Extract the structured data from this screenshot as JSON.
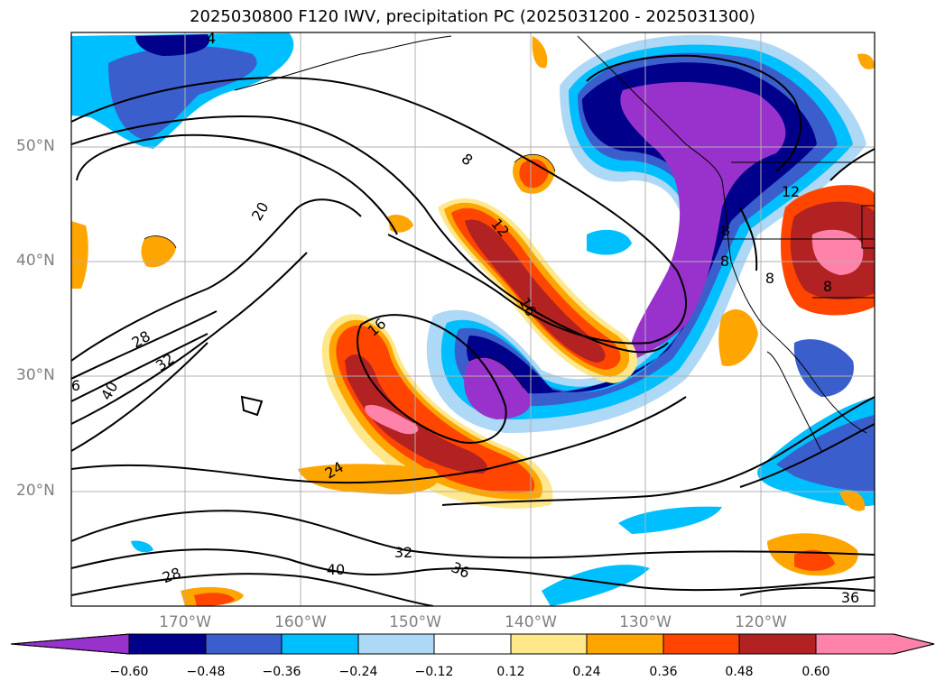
{
  "title": "2025030800 F120 IWV, precipitation PC (2025031200 - 2025031300)",
  "latitude_labels": [
    "50°N",
    "40°N",
    "30°N",
    "20°N"
  ],
  "longitude_labels": [
    "170°W",
    "160°W",
    "150°W",
    "140°W",
    "130°W",
    "120°W"
  ],
  "contour_labels": [
    "8",
    "12",
    "16",
    "16",
    "20",
    "24",
    "28",
    "28",
    "32",
    "32",
    "36",
    "36",
    "40",
    "40",
    "8",
    "12",
    "8",
    "8",
    "4",
    "8",
    "6"
  ],
  "colorbar": {
    "ticks": [
      "−0.60",
      "−0.48",
      "−0.36",
      "−0.24",
      "−0.12",
      "0.12",
      "0.24",
      "0.36",
      "0.48",
      "0.60"
    ],
    "colors": [
      "#9932CC",
      "#00008B",
      "#3A5FCD",
      "#00BFFF",
      "#ADD8F6",
      "#FFFFFF",
      "#FFE88C",
      "#FFA500",
      "#FF4500",
      "#B22222",
      "#FF82AB"
    ]
  },
  "colors": {
    "contour": "#000000",
    "grid": "#B0B0B0",
    "label": "#808080"
  }
}
